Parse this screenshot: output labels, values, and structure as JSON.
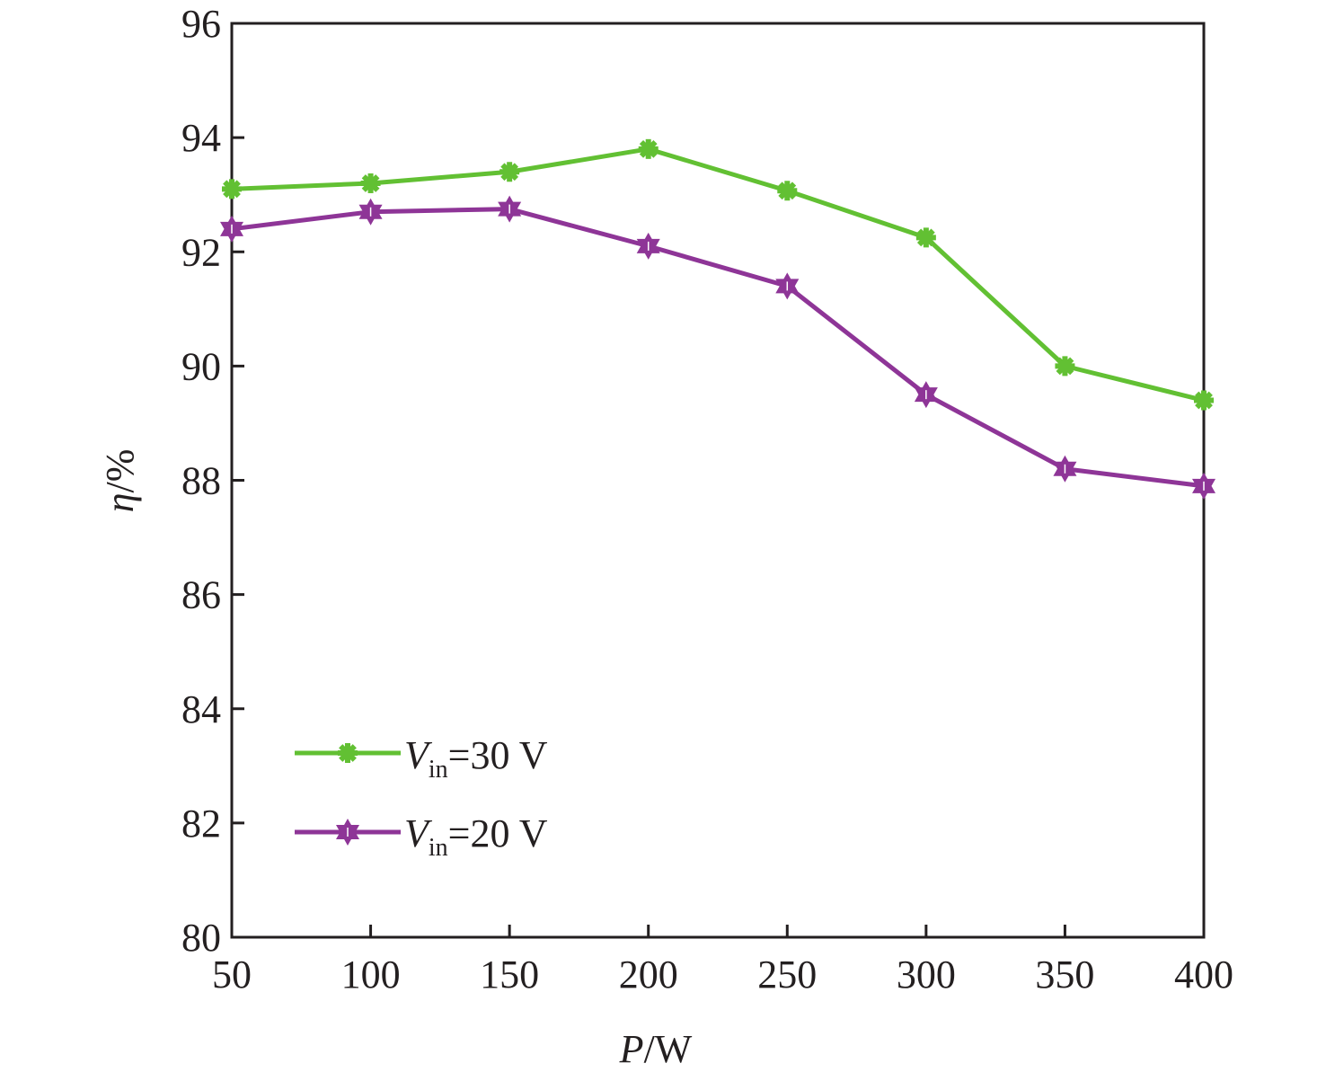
{
  "chart_data": {
    "type": "line",
    "title": "",
    "xlabel": {
      "italic": "P",
      "rest": "/W"
    },
    "ylabel": {
      "italic": "η",
      "rest": "/%"
    },
    "xlim": [
      50,
      400
    ],
    "ylim": [
      80,
      96
    ],
    "xticks": [
      50,
      100,
      150,
      200,
      250,
      300,
      350,
      400
    ],
    "yticks": [
      80,
      82,
      84,
      86,
      88,
      90,
      92,
      94,
      96
    ],
    "x": [
      50,
      100,
      150,
      200,
      250,
      300,
      350,
      400
    ],
    "grid": false,
    "legend_position": "bottom-left",
    "series": [
      {
        "name": "Vin=30 V",
        "label_main": "V",
        "label_sub": "in",
        "label_rest": "=30 V",
        "color": "#62c033",
        "marker": "asterisk",
        "values": [
          93.1,
          93.2,
          93.4,
          93.8,
          93.07,
          92.25,
          90.0,
          89.4
        ]
      },
      {
        "name": "Vin=20 V",
        "label_main": "V",
        "label_sub": "in",
        "label_rest": "=20 V",
        "color": "#8e3597",
        "marker": "hexagram",
        "values": [
          92.4,
          92.7,
          92.75,
          92.1,
          91.4,
          89.5,
          88.2,
          87.9
        ]
      }
    ]
  }
}
